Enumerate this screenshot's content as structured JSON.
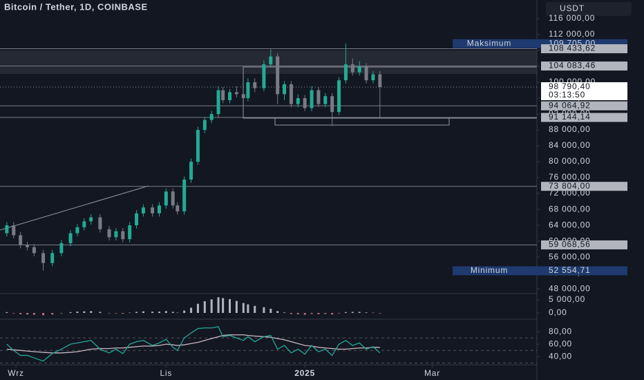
{
  "chart_data": {
    "type": "candlestick",
    "title": "Bitcoin / Tether, 1D, COINBASE",
    "currency": "USDT",
    "up_color": "#22ab94",
    "down_color": "#787b86",
    "xlim": [
      -3,
      233
    ],
    "xticks": [
      {
        "value": 4,
        "label": "Wrz"
      },
      {
        "value": 70,
        "label": "Lis"
      },
      {
        "value": 131,
        "label": "2025"
      },
      {
        "value": 187,
        "label": "Mar"
      }
    ],
    "ylim": [
      46800,
      120700
    ],
    "yticks": [
      {
        "value": 48000,
        "label": "48 000,00"
      },
      {
        "value": 52000,
        "label": "52 000,00"
      },
      {
        "value": 56000,
        "label": "56 000,00"
      },
      {
        "value": 60000,
        "label": "60 000,00"
      },
      {
        "value": 64000,
        "label": "64 000,00"
      },
      {
        "value": 68000,
        "label": "68 000,00"
      },
      {
        "value": 72000,
        "label": "72 000,00"
      },
      {
        "value": 76000,
        "label": "76 000,00"
      },
      {
        "value": 80000,
        "label": "80 000,00"
      },
      {
        "value": 84000,
        "label": "84 000,00"
      },
      {
        "value": 88000,
        "label": "88 000,00"
      },
      {
        "value": 92000,
        "label": "92 000,00"
      },
      {
        "value": 96000,
        "label": "96 000,00"
      },
      {
        "value": 100000,
        "label": "100 000,00"
      },
      {
        "value": 104000,
        "label": "104 000,00"
      },
      {
        "value": 108000,
        "label": "108 000,00"
      },
      {
        "value": 112000,
        "label": "112 000,00"
      },
      {
        "value": 116000,
        "label": "116 000,00"
      }
    ],
    "candles": [
      {
        "x": 0,
        "o": 62000,
        "h": 64800,
        "l": 61200,
        "c": 64000
      },
      {
        "x": 3,
        "o": 64000,
        "h": 64800,
        "l": 60700,
        "c": 61500
      },
      {
        "x": 6,
        "o": 61500,
        "h": 62300,
        "l": 58200,
        "c": 59000
      },
      {
        "x": 9,
        "o": 59000,
        "h": 59800,
        "l": 57700,
        "c": 58500
      },
      {
        "x": 12,
        "o": 58500,
        "h": 59300,
        "l": 56200,
        "c": 57000
      },
      {
        "x": 16,
        "o": 57000,
        "h": 57800,
        "l": 52554.71,
        "c": 54500
      },
      {
        "x": 20,
        "o": 54500,
        "h": 57800,
        "l": 53700,
        "c": 57000
      },
      {
        "x": 24,
        "o": 57000,
        "h": 60300,
        "l": 56200,
        "c": 59500
      },
      {
        "x": 28,
        "o": 59500,
        "h": 62800,
        "l": 58700,
        "c": 62000
      },
      {
        "x": 31,
        "o": 62000,
        "h": 64300,
        "l": 61200,
        "c": 63500
      },
      {
        "x": 34,
        "o": 63500,
        "h": 65800,
        "l": 62700,
        "c": 65000
      },
      {
        "x": 37,
        "o": 65000,
        "h": 66800,
        "l": 64200,
        "c": 66000
      },
      {
        "x": 41,
        "o": 66000,
        "h": 66800,
        "l": 62200,
        "c": 63000
      },
      {
        "x": 45,
        "o": 63000,
        "h": 63800,
        "l": 60200,
        "c": 61000
      },
      {
        "x": 48,
        "o": 61000,
        "h": 63300,
        "l": 60200,
        "c": 62500
      },
      {
        "x": 51,
        "o": 62500,
        "h": 63300,
        "l": 59700,
        "c": 60500
      },
      {
        "x": 54,
        "o": 60500,
        "h": 64800,
        "l": 59700,
        "c": 64000
      },
      {
        "x": 57,
        "o": 64000,
        "h": 67800,
        "l": 63200,
        "c": 67000
      },
      {
        "x": 60,
        "o": 67000,
        "h": 69300,
        "l": 66200,
        "c": 68500
      },
      {
        "x": 64,
        "o": 68500,
        "h": 69300,
        "l": 66200,
        "c": 67000
      },
      {
        "x": 67,
        "o": 67000,
        "h": 69800,
        "l": 66200,
        "c": 69000
      },
      {
        "x": 70,
        "o": 69000,
        "h": 73300,
        "l": 68200,
        "c": 72500
      },
      {
        "x": 73,
        "o": 72500,
        "h": 73300,
        "l": 68200,
        "c": 69000
      },
      {
        "x": 75,
        "o": 69000,
        "h": 69800,
        "l": 66700,
        "c": 67500
      },
      {
        "x": 78,
        "o": 67500,
        "h": 76300,
        "l": 66700,
        "c": 75500
      },
      {
        "x": 81,
        "o": 75500,
        "h": 80800,
        "l": 74700,
        "c": 80000
      },
      {
        "x": 84,
        "o": 80000,
        "h": 88800,
        "l": 79200,
        "c": 88000
      },
      {
        "x": 87,
        "o": 88000,
        "h": 91300,
        "l": 87200,
        "c": 90500
      },
      {
        "x": 90,
        "o": 90500,
        "h": 92800,
        "l": 89700,
        "c": 92000
      },
      {
        "x": 93,
        "o": 92000,
        "h": 99000,
        "l": 91200,
        "c": 98000
      },
      {
        "x": 95,
        "o": 98000,
        "h": 98800,
        "l": 94700,
        "c": 95500
      },
      {
        "x": 98,
        "o": 95500,
        "h": 98300,
        "l": 94700,
        "c": 97500
      },
      {
        "x": 101,
        "o": 97500,
        "h": 99000,
        "l": 96200,
        "c": 97000
      },
      {
        "x": 104,
        "o": 97000,
        "h": 98000,
        "l": 94500,
        "c": 96000
      },
      {
        "x": 106,
        "o": 96000,
        "h": 101000,
        "l": 95200,
        "c": 100000
      },
      {
        "x": 109,
        "o": 100000,
        "h": 101000,
        "l": 97500,
        "c": 98500
      },
      {
        "x": 113,
        "o": 98500,
        "h": 105500,
        "l": 97700,
        "c": 104500
      },
      {
        "x": 116,
        "o": 104500,
        "h": 108300,
        "l": 103700,
        "c": 106500
      },
      {
        "x": 119,
        "o": 106500,
        "h": 107300,
        "l": 94500,
        "c": 97000
      },
      {
        "x": 122,
        "o": 97000,
        "h": 100300,
        "l": 95500,
        "c": 99500
      },
      {
        "x": 125,
        "o": 99500,
        "h": 100300,
        "l": 93700,
        "c": 94500
      },
      {
        "x": 128,
        "o": 94500,
        "h": 97000,
        "l": 93700,
        "c": 96000
      },
      {
        "x": 131,
        "o": 96000,
        "h": 96800,
        "l": 92700,
        "c": 93500
      },
      {
        "x": 134,
        "o": 93500,
        "h": 99000,
        "l": 92700,
        "c": 98000
      },
      {
        "x": 137,
        "o": 98000,
        "h": 98800,
        "l": 93700,
        "c": 94500
      },
      {
        "x": 140,
        "o": 94500,
        "h": 97300,
        "l": 93700,
        "c": 96500
      },
      {
        "x": 143,
        "o": 96500,
        "h": 97300,
        "l": 89000,
        "c": 92500
      },
      {
        "x": 146,
        "o": 92500,
        "h": 101300,
        "l": 91700,
        "c": 100500
      },
      {
        "x": 149,
        "o": 100500,
        "h": 109705,
        "l": 99700,
        "c": 104500
      },
      {
        "x": 152,
        "o": 104500,
        "h": 106000,
        "l": 101700,
        "c": 102500
      },
      {
        "x": 155,
        "o": 102500,
        "h": 105300,
        "l": 101700,
        "c": 104000
      },
      {
        "x": 158,
        "o": 104000,
        "h": 104800,
        "l": 99700,
        "c": 100500
      },
      {
        "x": 161,
        "o": 100500,
        "h": 102800,
        "l": 99700,
        "c": 102000
      },
      {
        "x": 164,
        "o": 102000,
        "h": 102800,
        "l": 91144.14,
        "c": 98790.4
      }
    ],
    "levels": [
      {
        "value": 109705,
        "label": "109 705,00",
        "tag": "Maksimum",
        "style": "extreme"
      },
      {
        "value": 108433.62,
        "label": "108 433,62",
        "style": "line"
      },
      {
        "value": 104083.46,
        "label": "104 083,46",
        "style": "line"
      },
      {
        "value": 94064.92,
        "label": "94 064,92",
        "style": "line"
      },
      {
        "value": 91144.14,
        "label": "91 144,14",
        "style": "line"
      },
      {
        "value": 73804,
        "label": "73 804,00",
        "style": "line"
      },
      {
        "value": 59068.56,
        "label": "59 068,56",
        "style": "line"
      },
      {
        "value": 52554.71,
        "label": "52 554,71",
        "tag": "Minimum",
        "style": "extreme"
      }
    ],
    "current": {
      "value": 98790.4,
      "label": "98 790,40",
      "countdown": "03:13:50"
    },
    "macd": {
      "ylim": [
        -2400,
        7400
      ],
      "yticks": [
        {
          "value": 5000,
          "label": "5 000,00"
        },
        {
          "value": 0,
          "label": "0,00"
        }
      ],
      "pos_color": "#b2b5be",
      "neg_color": "#c46b7a",
      "values": [
        300,
        -200,
        -500,
        -600,
        -700,
        -900,
        -600,
        -200,
        300,
        500,
        600,
        700,
        400,
        0,
        -200,
        -300,
        100,
        400,
        600,
        500,
        500,
        700,
        400,
        100,
        900,
        2000,
        3500,
        4500,
        5200,
        6000,
        5700,
        5300,
        4600,
        3800,
        3300,
        2700,
        2200,
        1600,
        700,
        200,
        -400,
        -500,
        -700,
        -400,
        -500,
        -400,
        -600,
        -200,
        300,
        400,
        400,
        200,
        100,
        -200
      ]
    },
    "rsi": {
      "ylim": [
        27,
        100
      ],
      "yticks": [
        {
          "value": 80,
          "label": "80,00"
        },
        {
          "value": 60,
          "label": "60,00"
        },
        {
          "value": 40,
          "label": "40,00"
        }
      ],
      "levels": [
        70,
        50,
        30
      ],
      "color": "#26a69a",
      "ma_color": "#c9b8c0",
      "values": [
        60,
        50,
        42,
        42,
        38,
        33,
        45,
        52,
        60,
        62,
        64,
        66,
        52,
        46,
        52,
        45,
        60,
        64,
        66,
        58,
        62,
        68,
        55,
        50,
        70,
        78,
        85,
        86,
        86,
        88,
        72,
        74,
        70,
        66,
        72,
        64,
        72,
        74,
        52,
        58,
        46,
        52,
        44,
        58,
        48,
        52,
        42,
        60,
        66,
        58,
        62,
        52,
        56,
        46
      ],
      "ma": [
        52,
        51,
        50,
        49,
        48,
        47,
        46,
        46,
        47,
        48,
        50,
        52,
        53,
        53,
        54,
        54,
        55,
        56,
        57,
        57,
        58,
        60,
        59,
        58,
        59,
        61,
        63,
        66,
        69,
        72,
        74,
        75,
        75,
        75,
        74,
        73,
        72,
        71,
        69,
        67,
        64,
        61,
        58,
        57,
        55,
        54,
        53,
        52,
        52,
        53,
        54,
        54,
        55,
        55
      ]
    }
  }
}
